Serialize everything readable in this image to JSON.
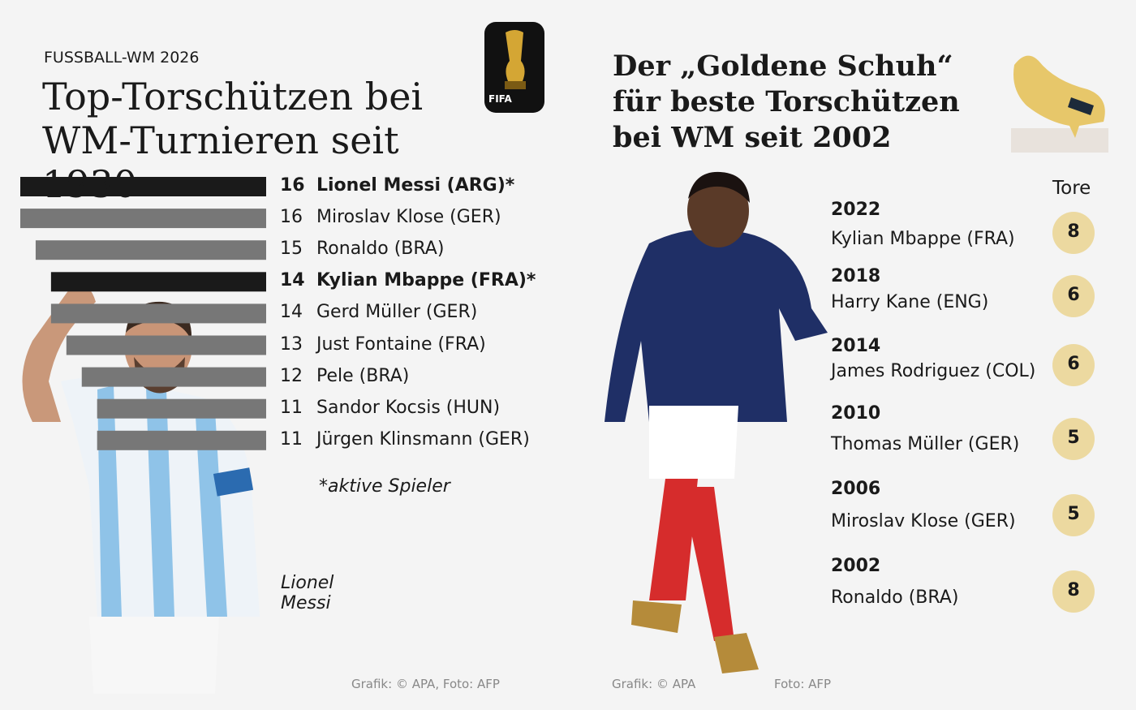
{
  "chart_data": {
    "type": "bar",
    "orientation": "horizontal",
    "kicker": "FUSSBALL-WM 2026",
    "title": "Top-Torschützen bei WM-Turnieren seit 1930",
    "categories": [
      "Lionel Messi (ARG)*",
      "Miroslav Klose (GER)",
      "Ronaldo (BRA)",
      "Kylian Mbappe (FRA)*",
      "Gerd Müller (GER)",
      "Just Fontaine (FRA)",
      "Pele (BRA)",
      "Sandor Kocsis (HUN)",
      "Jürgen Klinsmann (GER)"
    ],
    "values": [
      16,
      16,
      15,
      14,
      14,
      13,
      12,
      11,
      11
    ],
    "colors": [
      "#1a1a1a",
      "#777777",
      "#777777",
      "#1a1a1a",
      "#777777",
      "#777777",
      "#777777",
      "#777777",
      "#777777"
    ],
    "xlim": [
      0,
      16
    ],
    "note": "*aktive Spieler",
    "photo_caption": "Lionel Messi",
    "source": "Grafik: © APA, Foto: AFP"
  },
  "logo": {
    "text": "FIFA"
  },
  "golden_boot": {
    "title": "Der „Goldene Schuh“ für beste Torschützen bei WM seit 2002",
    "column_header": "Tore",
    "rows": [
      {
        "year": "2022",
        "player": "Kylian Mbappe (FRA)",
        "goals": 8
      },
      {
        "year": "2018",
        "player": "Harry Kane (ENG)",
        "goals": 6
      },
      {
        "year": "2014",
        "player": "James Rodriguez (COL)",
        "goals": 6
      },
      {
        "year": "2010",
        "player": "Thomas Müller (GER)",
        "goals": 5
      },
      {
        "year": "2006",
        "player": "Miroslav Klose (GER)",
        "goals": 5
      },
      {
        "year": "2002",
        "player": "Ronaldo (BRA)",
        "goals": 8
      }
    ],
    "source": "Grafik: © APA",
    "photo_credit": "Foto: AFP"
  }
}
